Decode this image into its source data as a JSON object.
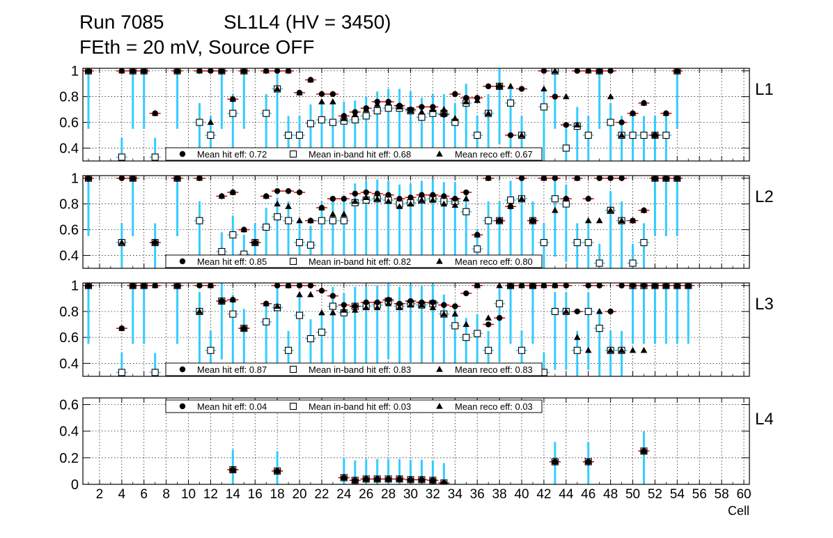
{
  "title": {
    "line1": "Run 7085           SL1L4 (HV = 3450)",
    "line2": "FEth = 20 mV, Source OFF"
  },
  "chart_data": {
    "type": "scatter",
    "xlabel": "Cell",
    "x_ticks": [
      2,
      4,
      6,
      8,
      10,
      12,
      14,
      16,
      18,
      20,
      22,
      24,
      26,
      28,
      30,
      32,
      34,
      36,
      38,
      40,
      42,
      44,
      46,
      48,
      50,
      52,
      54,
      56,
      58,
      60
    ],
    "xlim": [
      0.5,
      60.5
    ],
    "colors": {
      "hit_err": "#cc0000",
      "inband_err": "#33ccff",
      "reco_err": "#6600cc",
      "marker": "#000000"
    },
    "series_names": [
      "Mean hit  eff",
      "Mean in-band hit eff",
      "Mean reco eff"
    ],
    "panels": [
      {
        "label": "L1",
        "ylim": [
          0.3,
          1.02
        ],
        "yticks": [
          0.4,
          0.6,
          0.8,
          1
        ],
        "legend": {
          "position": "bottom",
          "hit": "Mean hit  eff: 0.72",
          "inband": "Mean in-band hit eff: 0.68",
          "reco": "Mean reco eff: 0.67"
        },
        "cells": [
          1,
          4,
          5,
          6,
          7,
          9,
          11,
          12,
          13,
          14,
          15,
          17,
          18,
          19,
          20,
          21,
          22,
          23,
          24,
          25,
          26,
          27,
          28,
          29,
          30,
          31,
          32,
          33,
          34,
          35,
          36,
          37,
          38,
          39,
          40,
          42,
          43,
          44,
          45,
          46,
          47,
          48,
          49,
          50,
          51,
          52,
          53,
          54
        ],
        "hit": [
          1,
          1,
          1,
          1,
          0.67,
          1,
          1,
          1,
          1,
          0.78,
          1,
          1,
          1,
          1,
          0.83,
          0.93,
          0.82,
          0.82,
          0.65,
          0.68,
          0.71,
          0.76,
          0.76,
          0.73,
          0.7,
          0.72,
          0.72,
          0.66,
          0.82,
          0.79,
          0.79,
          0.88,
          0.88,
          0.5,
          0.86,
          1,
          0.8,
          0.58,
          1,
          1,
          1,
          1,
          0.6,
          0.67,
          0.75,
          0.5,
          0.67,
          1
        ],
        "inband": [
          1,
          0.33,
          1,
          1,
          0.33,
          1,
          0.6,
          0.5,
          1,
          0.67,
          1,
          0.67,
          0.86,
          0.5,
          0.5,
          0.59,
          0.62,
          0.6,
          0.61,
          0.62,
          0.65,
          0.69,
          0.71,
          0.71,
          0.69,
          0.64,
          0.67,
          0.67,
          0.6,
          0.75,
          0.5,
          0.67,
          0.88,
          0.75,
          0.5,
          0.72,
          1,
          0.4,
          0.57,
          0.5,
          1,
          0.6,
          0.5,
          0.5,
          0.5,
          0.5,
          0.5,
          1
        ],
        "reco": [
          1,
          1,
          1,
          1,
          0.67,
          1,
          1,
          0.6,
          1,
          0.78,
          1,
          1,
          0.86,
          1,
          0.83,
          0.93,
          0.76,
          0.76,
          0.63,
          0.66,
          0.7,
          0.74,
          0.75,
          0.72,
          0.69,
          0.68,
          0.7,
          0.7,
          0.63,
          0.76,
          0.77,
          0.67,
          0.88,
          0.88,
          0.5,
          0.86,
          1,
          0.8,
          0.58,
          1,
          1,
          0.8,
          0.5,
          0.67,
          0.75,
          0.5,
          0.67,
          1
        ]
      },
      {
        "label": "L2",
        "ylim": [
          0.3,
          1.02
        ],
        "yticks": [
          0.4,
          0.6,
          0.8,
          1
        ],
        "legend": {
          "position": "bottom",
          "hit": "Mean hit  eff: 0.85",
          "inband": "Mean in-band hit eff: 0.82",
          "reco": "Mean reco eff: 0.80"
        },
        "cells": [
          1,
          4,
          5,
          7,
          9,
          11,
          13,
          14,
          15,
          16,
          17,
          18,
          19,
          20,
          21,
          22,
          23,
          24,
          25,
          26,
          27,
          28,
          29,
          30,
          31,
          32,
          33,
          34,
          35,
          36,
          37,
          38,
          39,
          40,
          41,
          42,
          43,
          44,
          45,
          46,
          47,
          48,
          49,
          50,
          51,
          52,
          53,
          54
        ],
        "hit": [
          1,
          1,
          1,
          0.5,
          1,
          1,
          0.86,
          0.89,
          0.6,
          0.5,
          0.86,
          0.9,
          0.9,
          0.89,
          0.67,
          0.77,
          0.84,
          0.84,
          0.88,
          0.89,
          0.88,
          0.87,
          0.84,
          0.85,
          0.87,
          0.87,
          0.86,
          0.84,
          0.89,
          0.56,
          1,
          0.67,
          0.78,
          1,
          0.67,
          1,
          1,
          0.84,
          1,
          0.84,
          1,
          1,
          1,
          0.67,
          0.75,
          1,
          1,
          1
        ],
        "inband": [
          1,
          0.5,
          1,
          0.5,
          1,
          0.67,
          0.43,
          0.56,
          0.41,
          0.5,
          0.62,
          0.7,
          0.67,
          0.5,
          0.48,
          0.67,
          0.67,
          0.67,
          0.81,
          0.83,
          0.84,
          0.83,
          0.8,
          0.81,
          0.83,
          0.84,
          0.82,
          0.82,
          0.74,
          0.45,
          0.67,
          0.67,
          0.83,
          0.84,
          0.67,
          0.5,
          0.84,
          0.8,
          0.5,
          0.5,
          0.34,
          0.75,
          0.67,
          0.34,
          0.5,
          1,
          1,
          1
        ],
        "reco": [
          1,
          0.5,
          1,
          0.5,
          1,
          1,
          0.86,
          0.89,
          0.6,
          0.5,
          0.86,
          0.8,
          0.78,
          0.67,
          0.67,
          0.77,
          0.72,
          0.72,
          0.82,
          0.85,
          0.84,
          0.82,
          0.78,
          0.8,
          0.83,
          0.83,
          0.8,
          0.79,
          0.84,
          0.56,
          1,
          0.67,
          0.78,
          0.84,
          0.67,
          1,
          0.75,
          0.84,
          1,
          0.67,
          0.67,
          0.75,
          0.67,
          0.67,
          0.75,
          1,
          1,
          1
        ]
      },
      {
        "label": "L3",
        "ylim": [
          0.3,
          1.02
        ],
        "yticks": [
          0.4,
          0.6,
          0.8,
          1
        ],
        "legend": {
          "position": "bottom",
          "hit": "Mean hit  eff: 0.87",
          "inband": "Mean in-band hit eff: 0.83",
          "reco": "Mean reco eff: 0.83"
        },
        "cells": [
          1,
          4,
          5,
          6,
          7,
          9,
          11,
          12,
          13,
          14,
          15,
          17,
          18,
          19,
          20,
          21,
          22,
          23,
          24,
          25,
          26,
          27,
          28,
          29,
          30,
          31,
          32,
          33,
          34,
          35,
          36,
          37,
          38,
          39,
          40,
          41,
          42,
          43,
          44,
          45,
          46,
          47,
          48,
          49,
          50,
          51,
          52,
          53,
          54,
          55
        ],
        "hit": [
          1,
          0.67,
          1,
          1,
          1,
          1,
          1,
          1,
          0.88,
          0.89,
          0.67,
          0.86,
          1,
          1,
          1,
          1,
          0.96,
          0.92,
          0.85,
          0.84,
          0.87,
          0.87,
          0.89,
          0.86,
          0.88,
          0.87,
          0.87,
          0.85,
          0.84,
          0.94,
          1,
          0.7,
          0.75,
          1,
          1,
          1,
          1,
          1,
          1,
          0.8,
          1,
          1,
          0.8,
          1,
          1,
          1,
          1,
          1,
          1,
          1
        ],
        "inband": [
          1,
          0.33,
          1,
          1,
          0.33,
          1,
          0.8,
          0.5,
          0.88,
          0.78,
          0.67,
          0.72,
          0.83,
          0.5,
          0.77,
          0.59,
          0.64,
          0.84,
          0.79,
          0.84,
          0.84,
          0.85,
          0.88,
          0.84,
          0.86,
          0.85,
          0.86,
          0.78,
          0.69,
          0.6,
          0.63,
          0.5,
          0.86,
          1,
          0.5,
          1,
          0.33,
          0.8,
          0.8,
          0.5,
          0.8,
          0.67,
          0.5,
          0.5,
          1,
          1,
          1,
          1,
          1,
          1
        ],
        "reco": [
          1,
          0.67,
          1,
          1,
          1,
          1,
          0.8,
          1,
          0.88,
          0.89,
          0.67,
          0.86,
          0.84,
          1,
          0.93,
          0.93,
          0.79,
          0.79,
          0.81,
          0.81,
          0.83,
          0.83,
          0.86,
          0.83,
          0.85,
          0.85,
          0.83,
          0.78,
          0.78,
          0.7,
          1,
          0.75,
          1,
          1,
          1,
          1,
          1,
          1,
          0.8,
          0.6,
          0.5,
          0.8,
          0.5,
          0.5,
          0.5,
          0.5,
          1,
          1,
          1,
          1
        ]
      },
      {
        "label": "L4",
        "ylim": [
          0,
          0.65
        ],
        "yticks": [
          0,
          0.2,
          0.4,
          0.6
        ],
        "legend": {
          "position": "top",
          "hit": "Mean hit  eff: 0.04",
          "inband": "Mean in-band hit eff: 0.03",
          "reco": "Mean reco eff: 0.03"
        },
        "cells": [
          14,
          18,
          24,
          25,
          26,
          27,
          28,
          29,
          30,
          31,
          32,
          33,
          43,
          46,
          51
        ],
        "hit": [
          0.11,
          0.1,
          0.05,
          0.03,
          0.04,
          0.04,
          0.04,
          0.04,
          0.035,
          0.035,
          0.03,
          0.01,
          0.17,
          0.17,
          0.25
        ],
        "inband": [
          0.11,
          0.1,
          0.05,
          0.03,
          0.04,
          0.04,
          0.04,
          0.04,
          0.035,
          0.035,
          0.03,
          0.01,
          0.17,
          0.17,
          0.25
        ],
        "reco": [
          0.11,
          0.1,
          0.05,
          0.03,
          0.04,
          0.04,
          0.04,
          0.04,
          0.035,
          0.035,
          0.03,
          0.01,
          0.17,
          0.17,
          0.25
        ]
      }
    ]
  }
}
